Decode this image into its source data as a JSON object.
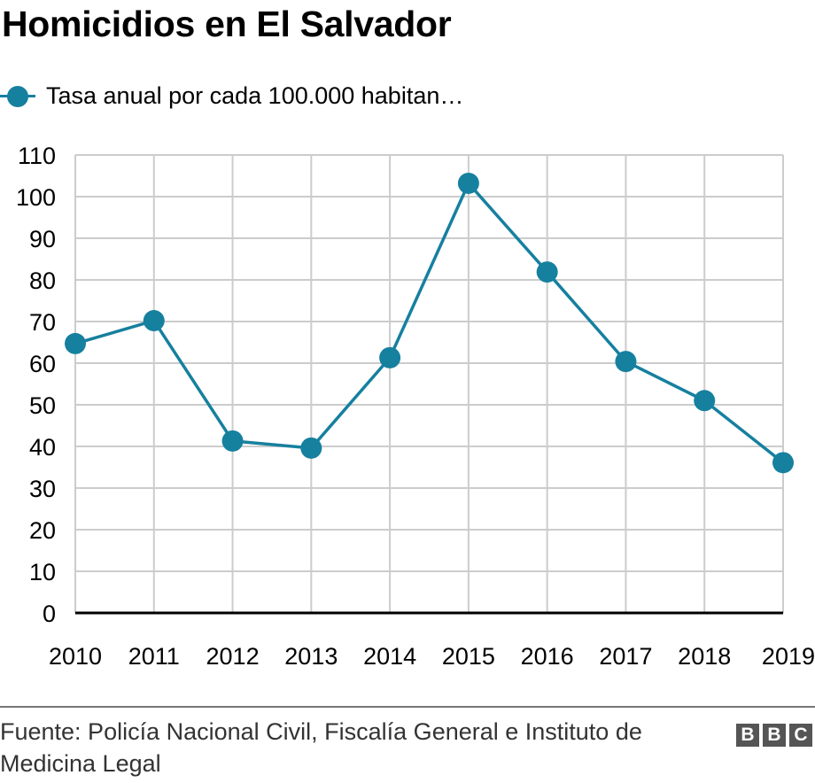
{
  "title": "Homicidios en El Salvador",
  "legend": {
    "label": "Tasa anual por cada 100.000 habitan…",
    "icon": "line-dot-marker"
  },
  "source": "Fuente: Policía Nacional Civil, Fiscalía General e Instituto de Medicina Legal",
  "logo": [
    "B",
    "B",
    "C"
  ],
  "colors": {
    "series": "#16809f",
    "grid": "#cccccc",
    "axis": "#000000"
  },
  "chart_data": {
    "type": "line",
    "title": "Homicidios en El Salvador",
    "xlabel": "",
    "ylabel": "",
    "categories": [
      "2010",
      "2011",
      "2012",
      "2013",
      "2014",
      "2015",
      "2016",
      "2017",
      "2018",
      "2019"
    ],
    "series": [
      {
        "name": "Tasa anual por cada 100.000 habitantes",
        "values": [
          64.7,
          70.2,
          41.3,
          39.6,
          61.3,
          103.2,
          81.9,
          60.4,
          51.0,
          36.1
        ]
      }
    ],
    "ylim": [
      0,
      110
    ],
    "yticks": [
      0,
      10,
      20,
      30,
      40,
      50,
      60,
      70,
      80,
      90,
      100,
      110
    ],
    "grid": true,
    "legend_position": "top-left",
    "markers": true
  }
}
